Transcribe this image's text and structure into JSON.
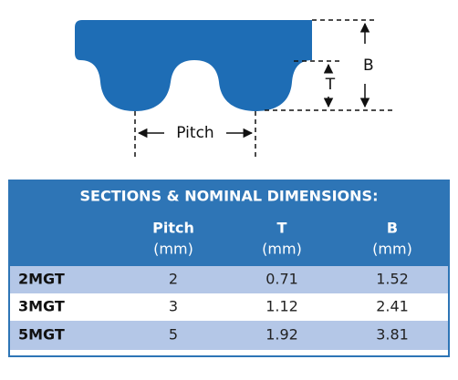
{
  "diagram": {
    "labels": {
      "b": "B",
      "t": "T",
      "pitch": "Pitch"
    }
  },
  "table": {
    "title": "SECTIONS & NOMINAL DIMENSIONS:",
    "columns": [
      {
        "name": "Pitch",
        "unit": "(mm)"
      },
      {
        "name": "T",
        "unit": "(mm)"
      },
      {
        "name": "B",
        "unit": "(mm)"
      }
    ],
    "rows": [
      [
        "2MGT",
        "2",
        "0.71",
        "1.52"
      ],
      [
        "3MGT",
        "3",
        "1.12",
        "2.41"
      ],
      [
        "5MGT",
        "5",
        "1.92",
        "3.81"
      ]
    ]
  }
}
